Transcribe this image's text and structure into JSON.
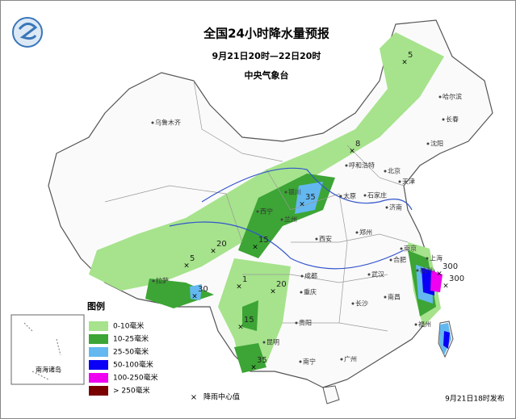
{
  "header": {
    "title": "全国24小时降水量预报",
    "subtitle": "9月21日20时—22日20时",
    "issuer": "中央气象台"
  },
  "legend": {
    "title": "图例",
    "items": [
      {
        "label": "0-10毫米",
        "color": "#a6e38c"
      },
      {
        "label": "10-25毫米",
        "color": "#3ca535"
      },
      {
        "label": "25-50毫米",
        "color": "#64b8f0"
      },
      {
        "label": "50-100毫米",
        "color": "#0a00f5"
      },
      {
        "label": "100-250毫米",
        "color": "#f000f0"
      },
      {
        "label": "> 250毫米",
        "color": "#7a0000"
      }
    ],
    "center_label": "降雨中心值"
  },
  "cities": [
    "乌鲁木齐",
    "哈尔滨",
    "长春",
    "沈阳",
    "呼和浩特",
    "北京",
    "天津",
    "石家庄",
    "太原",
    "济南",
    "银川",
    "西宁",
    "兰州",
    "西安",
    "郑州",
    "合肥",
    "上海",
    "杭州",
    "南京",
    "成都",
    "重庆",
    "武汉",
    "长沙",
    "南昌",
    "福州",
    "贵阳",
    "昆明",
    "南宁",
    "广州",
    "拉萨"
  ],
  "centers": [
    "5",
    "8",
    "35",
    "15",
    "20",
    "5",
    "1",
    "20",
    "30",
    "15",
    "35",
    "300",
    "300"
  ],
  "inset_label": "南海诸岛",
  "footer": "9月21日18时发布"
}
